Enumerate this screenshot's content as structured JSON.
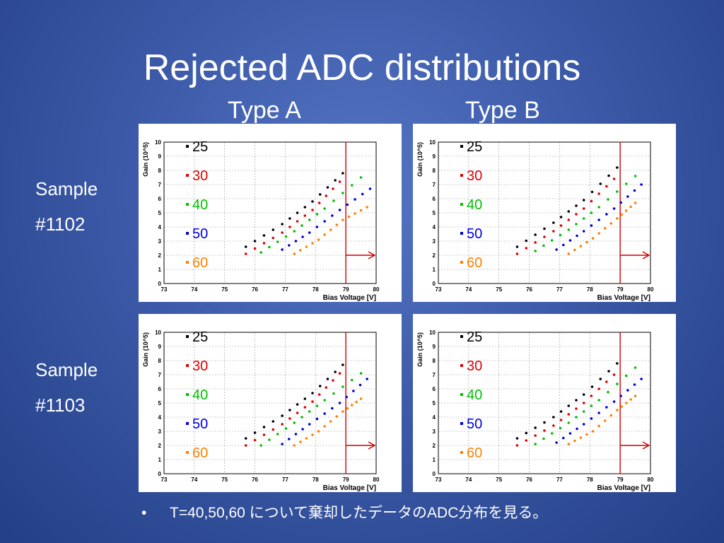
{
  "slide": {
    "title": "Rejected ADC distributions",
    "col_headers": [
      "Type A",
      "Type B"
    ],
    "rows": [
      {
        "lines": [
          "Sample",
          "#1102"
        ]
      },
      {
        "lines": [
          "Sample",
          "#1103"
        ]
      }
    ],
    "footnote": {
      "bullet": "•",
      "text": "T=40,50,60 について棄却したデータのADC分布を見る。"
    }
  },
  "chart_data": [
    {
      "type": "scatter",
      "panel": "Type A / Sample #1102",
      "xlabel": "Bias Voltage [V]",
      "ylabel": "Gain (10^5)",
      "xlim": [
        73,
        80
      ],
      "ylim": [
        0,
        10
      ],
      "xticks": [
        "73",
        "74",
        "75",
        "76",
        "77",
        "78",
        "79",
        "80"
      ],
      "yticks": [
        "0",
        "1",
        "2",
        "3",
        "4",
        "5",
        "6",
        "7",
        "8",
        "9",
        "10"
      ],
      "grid": true,
      "legend_position": "top-left",
      "cutoff": {
        "x": 79,
        "color": "#cc0000"
      },
      "series": [
        {
          "name": "25",
          "color": "#000000",
          "x": [
            75.7,
            76.9,
            77.9,
            78.9
          ],
          "y": [
            2.6,
            4.2,
            5.8,
            7.8
          ]
        },
        {
          "name": "30",
          "color": "#e00000",
          "x": [
            75.7,
            76.9,
            77.9,
            78.8
          ],
          "y": [
            2.1,
            3.6,
            5.2,
            7.2
          ]
        },
        {
          "name": "40",
          "color": "#00c000",
          "x": [
            76.2,
            77.3,
            78.3,
            79.5
          ],
          "y": [
            2.2,
            3.7,
            5.3,
            7.5
          ]
        },
        {
          "name": "50",
          "color": "#0000e0",
          "x": [
            76.9,
            77.8,
            78.8,
            79.8
          ],
          "y": [
            2.4,
            3.6,
            5.2,
            6.7
          ]
        },
        {
          "name": "60",
          "color": "#ff8000",
          "x": [
            77.3,
            78.1,
            78.9,
            79.7
          ],
          "y": [
            2.1,
            3.1,
            4.5,
            5.4
          ]
        }
      ]
    },
    {
      "type": "scatter",
      "panel": "Type B / Sample #1102",
      "xlabel": "Bias Voltage [V]",
      "ylabel": "Gain (10^5)",
      "xlim": [
        73,
        80
      ],
      "ylim": [
        0,
        10
      ],
      "xticks": [
        "73",
        "74",
        "75",
        "76",
        "77",
        "78",
        "79",
        "80"
      ],
      "yticks": [
        "0",
        "1",
        "2",
        "3",
        "4",
        "5",
        "6",
        "7",
        "8",
        "9",
        "10"
      ],
      "grid": true,
      "legend_position": "top-left",
      "cutoff": {
        "x": 79,
        "color": "#cc0000"
      },
      "series": [
        {
          "name": "25",
          "color": "#000000",
          "x": [
            75.6,
            76.8,
            77.8,
            78.9
          ],
          "y": [
            2.6,
            4.3,
            5.9,
            8.2
          ]
        },
        {
          "name": "30",
          "color": "#e00000",
          "x": [
            75.6,
            76.8,
            77.8,
            78.8
          ],
          "y": [
            2.1,
            3.7,
            5.3,
            7.4
          ]
        },
        {
          "name": "40",
          "color": "#00c000",
          "x": [
            76.2,
            77.3,
            78.3,
            79.5
          ],
          "y": [
            2.3,
            3.8,
            5.4,
            7.6
          ]
        },
        {
          "name": "50",
          "color": "#0000e0",
          "x": [
            76.9,
            77.8,
            78.8,
            79.7
          ],
          "y": [
            2.4,
            3.7,
            5.3,
            7.0
          ]
        },
        {
          "name": "60",
          "color": "#ff8000",
          "x": [
            77.3,
            78.1,
            78.9,
            79.5
          ],
          "y": [
            2.1,
            3.2,
            4.6,
            5.7
          ]
        }
      ]
    },
    {
      "type": "scatter",
      "panel": "Type A / Sample #1103",
      "xlabel": "Bias Voltage [V]",
      "ylabel": "Gain (10^5)",
      "xlim": [
        73,
        80
      ],
      "ylim": [
        0,
        10
      ],
      "xticks": [
        "73",
        "74",
        "75",
        "76",
        "77",
        "78",
        "79",
        "80"
      ],
      "yticks": [
        "0",
        "1",
        "2",
        "3",
        "4",
        "5",
        "6",
        "7",
        "8",
        "9",
        "10"
      ],
      "grid": true,
      "legend_position": "top-left",
      "cutoff": {
        "x": 79,
        "color": "#cc0000"
      },
      "series": [
        {
          "name": "25",
          "color": "#000000",
          "x": [
            75.7,
            76.9,
            77.9,
            78.9
          ],
          "y": [
            2.5,
            4.1,
            5.7,
            7.7
          ]
        },
        {
          "name": "30",
          "color": "#e00000",
          "x": [
            75.7,
            76.9,
            77.9,
            78.8
          ],
          "y": [
            2.0,
            3.5,
            5.1,
            7.1
          ]
        },
        {
          "name": "40",
          "color": "#00c000",
          "x": [
            76.2,
            77.3,
            78.3,
            79.5
          ],
          "y": [
            2.0,
            3.6,
            5.2,
            7.1
          ]
        },
        {
          "name": "50",
          "color": "#0000e0",
          "x": [
            76.9,
            77.8,
            78.8,
            79.7
          ],
          "y": [
            2.1,
            3.5,
            5.0,
            6.7
          ]
        },
        {
          "name": "60",
          "color": "#ff8000",
          "x": [
            77.3,
            78.1,
            78.9,
            79.5
          ],
          "y": [
            2.0,
            3.0,
            4.4,
            5.3
          ]
        }
      ]
    },
    {
      "type": "scatter",
      "panel": "Type B / Sample #1103",
      "xlabel": "Bias Voltage [V]",
      "ylabel": "Gain (10^5)",
      "xlim": [
        73,
        80
      ],
      "ylim": [
        0,
        10
      ],
      "xticks": [
        "73",
        "74",
        "75",
        "76",
        "77",
        "78",
        "79",
        "80"
      ],
      "yticks": [
        "0",
        "1",
        "2",
        "3",
        "4",
        "5",
        "6",
        "7",
        "8",
        "9",
        "10"
      ],
      "grid": true,
      "legend_position": "top-left",
      "cutoff": {
        "x": 79,
        "color": "#cc0000"
      },
      "series": [
        {
          "name": "25",
          "color": "#000000",
          "x": [
            75.6,
            76.8,
            77.8,
            78.9
          ],
          "y": [
            2.5,
            4.0,
            5.6,
            7.8
          ]
        },
        {
          "name": "30",
          "color": "#e00000",
          "x": [
            75.6,
            76.8,
            77.8,
            78.8
          ],
          "y": [
            2.0,
            3.4,
            5.0,
            7.0
          ]
        },
        {
          "name": "40",
          "color": "#00c000",
          "x": [
            76.2,
            77.3,
            78.3,
            79.5
          ],
          "y": [
            2.1,
            3.6,
            5.2,
            7.5
          ]
        },
        {
          "name": "50",
          "color": "#0000e0",
          "x": [
            76.9,
            77.8,
            78.8,
            79.7
          ],
          "y": [
            2.2,
            3.5,
            5.1,
            6.7
          ]
        },
        {
          "name": "60",
          "color": "#ff8000",
          "x": [
            77.3,
            78.1,
            78.9,
            79.5
          ],
          "y": [
            2.1,
            3.0,
            4.5,
            5.5
          ]
        }
      ]
    }
  ]
}
